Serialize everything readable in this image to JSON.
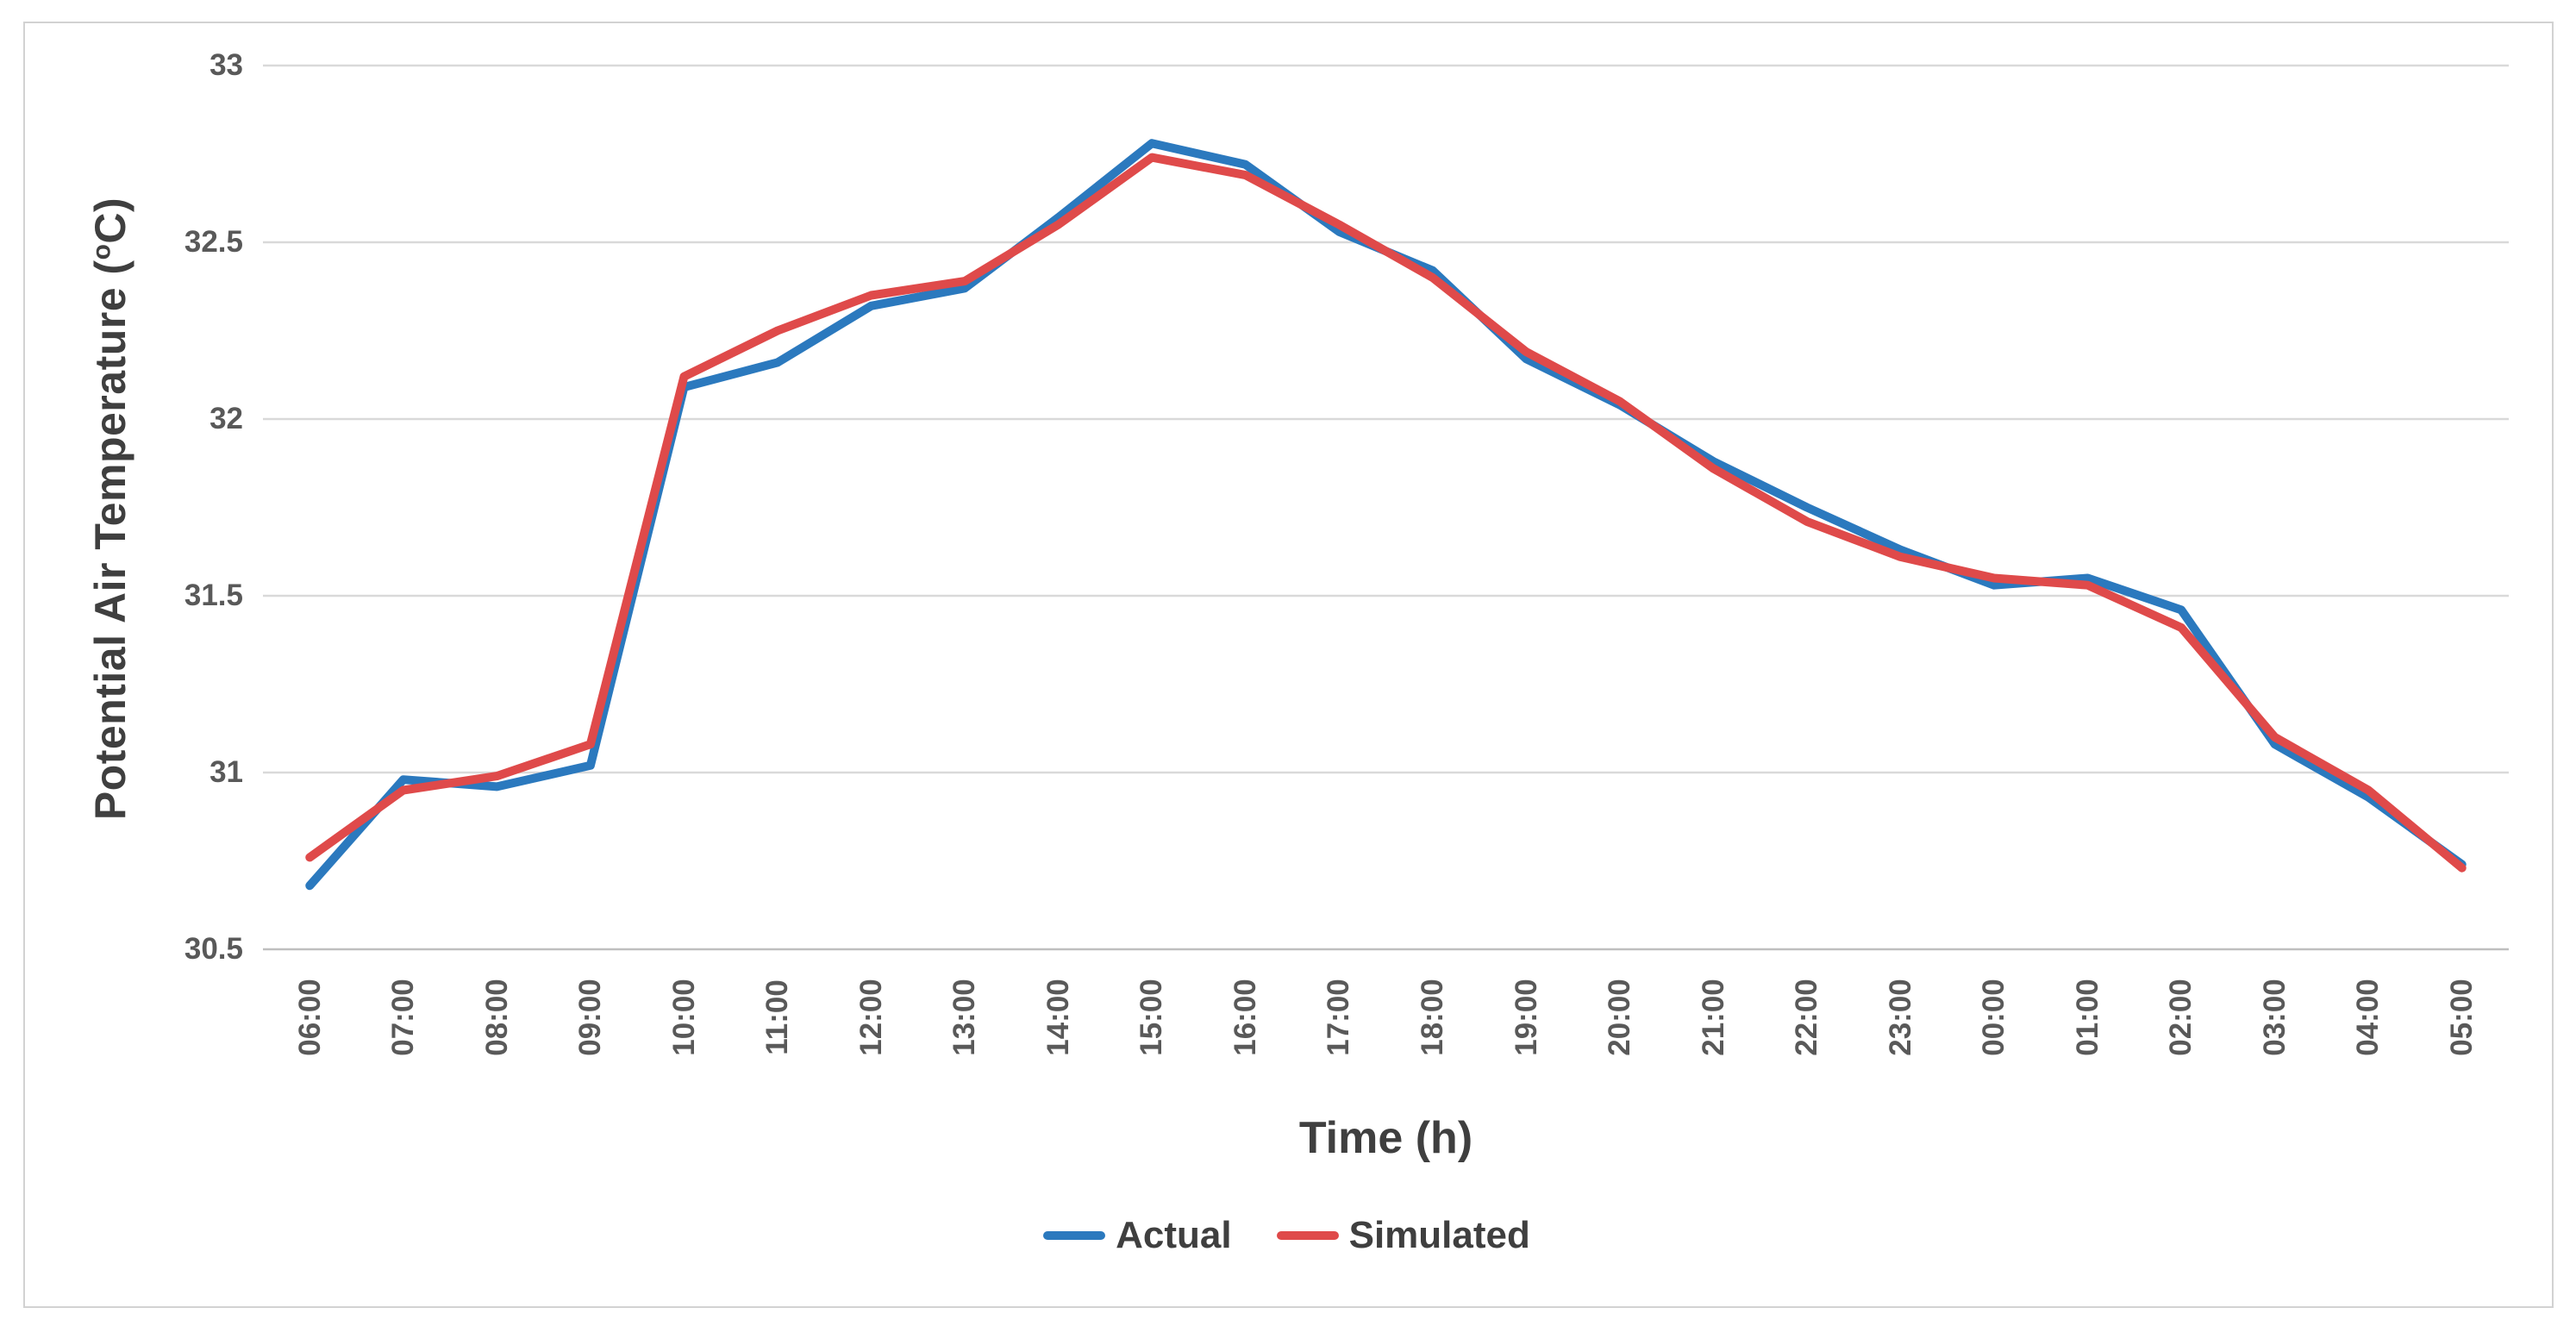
{
  "chart_data": {
    "type": "line",
    "title": "",
    "xlabel": "Time (h)",
    "ylabel": "Potential Air Temperature (oC)",
    "ylabel_parts": {
      "pre": "Potential Air Temperature (",
      "sup": "o",
      "post": "C)"
    },
    "categories": [
      "06:00",
      "07:00",
      "08:00",
      "09:00",
      "10:00",
      "11:00",
      "12:00",
      "13:00",
      "14:00",
      "15:00",
      "16:00",
      "17:00",
      "18:00",
      "19:00",
      "20:00",
      "21:00",
      "22:00",
      "23:00",
      "00:00",
      "01:00",
      "02:00",
      "03:00",
      "04:00",
      "05:00"
    ],
    "series": [
      {
        "name": "Actual",
        "color": "#2b79be",
        "values": [
          30.68,
          30.98,
          30.96,
          31.02,
          32.09,
          32.16,
          32.32,
          32.37,
          32.57,
          32.78,
          32.72,
          32.53,
          32.42,
          32.17,
          32.04,
          31.88,
          31.75,
          31.63,
          31.53,
          31.55,
          31.46,
          31.08,
          30.93,
          30.74
        ]
      },
      {
        "name": "Simulated",
        "color": "#df4a4a",
        "values": [
          30.76,
          30.95,
          30.99,
          31.08,
          32.12,
          32.25,
          32.35,
          32.39,
          32.55,
          32.74,
          32.69,
          32.55,
          32.4,
          32.19,
          32.05,
          31.86,
          31.71,
          31.61,
          31.55,
          31.53,
          31.41,
          31.1,
          30.95,
          30.73
        ]
      }
    ],
    "ylim": [
      30.5,
      33
    ],
    "yticks": [
      {
        "value": 33,
        "label": "33"
      },
      {
        "value": 32.5,
        "label": "32.5"
      },
      {
        "value": 32,
        "label": "32"
      },
      {
        "value": 31.5,
        "label": "31.5"
      },
      {
        "value": 31,
        "label": "31"
      },
      {
        "value": 30.5,
        "label": "30.5"
      }
    ],
    "grid": "horizontal",
    "legend_position": "bottom"
  },
  "colors": {
    "gridline": "#d9d9d9",
    "axis_line": "#bfbfbf",
    "tick_text": "#595959",
    "title_text": "#3f3f3f",
    "frame_border": "#d2d2d2",
    "background": "#ffffff"
  }
}
